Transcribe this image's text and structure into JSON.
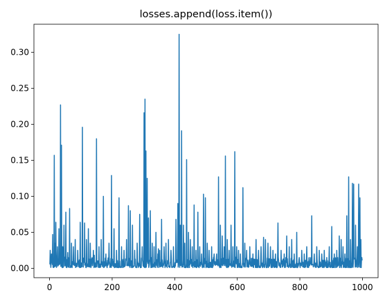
{
  "chart_data": {
    "type": "line",
    "title": "losses.append(loss.item())",
    "xlabel": "",
    "ylabel": "",
    "xlim": [
      -50,
      1050
    ],
    "ylim": [
      -0.013,
      0.339
    ],
    "x_ticks": [
      0,
      200,
      400,
      600,
      800,
      1000
    ],
    "x_tick_labels": [
      "0",
      "200",
      "400",
      "600",
      "800",
      "1000"
    ],
    "y_ticks": [
      0.0,
      0.05,
      0.1,
      0.15,
      0.2,
      0.25,
      0.3
    ],
    "y_tick_labels": [
      "0.00",
      "0.05",
      "0.10",
      "0.15",
      "0.20",
      "0.25",
      "0.30"
    ],
    "grid": false,
    "series": [
      {
        "color": "#1f77b4",
        "x_start": 0,
        "x_end": 999,
        "baseline_range": [
          0.001,
          0.015
        ],
        "peaks": [
          [
            2,
            0.025
          ],
          [
            6,
            0.02
          ],
          [
            10,
            0.047
          ],
          [
            15,
            0.157
          ],
          [
            18,
            0.035
          ],
          [
            20,
            0.064
          ],
          [
            25,
            0.03
          ],
          [
            30,
            0.055
          ],
          [
            35,
            0.227
          ],
          [
            38,
            0.171
          ],
          [
            42,
            0.03
          ],
          [
            46,
            0.06
          ],
          [
            52,
            0.078
          ],
          [
            58,
            0.022
          ],
          [
            64,
            0.083
          ],
          [
            70,
            0.035
          ],
          [
            76,
            0.03
          ],
          [
            82,
            0.04
          ],
          [
            90,
            0.025
          ],
          [
            98,
            0.064
          ],
          [
            105,
            0.196
          ],
          [
            112,
            0.063
          ],
          [
            118,
            0.04
          ],
          [
            124,
            0.055
          ],
          [
            130,
            0.035
          ],
          [
            140,
            0.025
          ],
          [
            150,
            0.18
          ],
          [
            158,
            0.03
          ],
          [
            165,
            0.04
          ],
          [
            172,
            0.1
          ],
          [
            180,
            0.02
          ],
          [
            190,
            0.035
          ],
          [
            198,
            0.129
          ],
          [
            206,
            0.055
          ],
          [
            214,
            0.025
          ],
          [
            222,
            0.098
          ],
          [
            230,
            0.03
          ],
          [
            238,
            0.025
          ],
          [
            246,
            0.04
          ],
          [
            252,
            0.087
          ],
          [
            258,
            0.08
          ],
          [
            265,
            0.06
          ],
          [
            272,
            0.025
          ],
          [
            280,
            0.035
          ],
          [
            288,
            0.075
          ],
          [
            296,
            0.03
          ],
          [
            302,
            0.216
          ],
          [
            305,
            0.235
          ],
          [
            308,
            0.163
          ],
          [
            312,
            0.125
          ],
          [
            316,
            0.07
          ],
          [
            322,
            0.08
          ],
          [
            328,
            0.035
          ],
          [
            334,
            0.03
          ],
          [
            340,
            0.05
          ],
          [
            346,
            0.02
          ],
          [
            352,
            0.025
          ],
          [
            358,
            0.068
          ],
          [
            366,
            0.03
          ],
          [
            372,
            0.035
          ],
          [
            380,
            0.04
          ],
          [
            388,
            0.025
          ],
          [
            396,
            0.03
          ],
          [
            404,
            0.068
          ],
          [
            410,
            0.09
          ],
          [
            414,
            0.325
          ],
          [
            418,
            0.06
          ],
          [
            422,
            0.191
          ],
          [
            428,
            0.06
          ],
          [
            432,
            0.035
          ],
          [
            438,
            0.151
          ],
          [
            444,
            0.05
          ],
          [
            450,
            0.04
          ],
          [
            456,
            0.03
          ],
          [
            462,
            0.088
          ],
          [
            468,
            0.025
          ],
          [
            474,
            0.078
          ],
          [
            480,
            0.03
          ],
          [
            486,
            0.02
          ],
          [
            492,
            0.103
          ],
          [
            498,
            0.098
          ],
          [
            504,
            0.035
          ],
          [
            510,
            0.025
          ],
          [
            518,
            0.03
          ],
          [
            526,
            0.02
          ],
          [
            534,
            0.02
          ],
          [
            540,
            0.127
          ],
          [
            546,
            0.06
          ],
          [
            552,
            0.045
          ],
          [
            558,
            0.03
          ],
          [
            562,
            0.156
          ],
          [
            568,
            0.04
          ],
          [
            574,
            0.025
          ],
          [
            580,
            0.06
          ],
          [
            586,
            0.03
          ],
          [
            592,
            0.162
          ],
          [
            598,
            0.03
          ],
          [
            604,
            0.025
          ],
          [
            610,
            0.02
          ],
          [
            618,
            0.112
          ],
          [
            624,
            0.035
          ],
          [
            630,
            0.025
          ],
          [
            640,
            0.03
          ],
          [
            650,
            0.02
          ],
          [
            660,
            0.04
          ],
          [
            668,
            0.025
          ],
          [
            676,
            0.03
          ],
          [
            684,
            0.043
          ],
          [
            690,
            0.04
          ],
          [
            698,
            0.035
          ],
          [
            706,
            0.03
          ],
          [
            714,
            0.025
          ],
          [
            722,
            0.02
          ],
          [
            730,
            0.063
          ],
          [
            740,
            0.025
          ],
          [
            750,
            0.02
          ],
          [
            758,
            0.045
          ],
          [
            766,
            0.03
          ],
          [
            774,
            0.04
          ],
          [
            782,
            0.02
          ],
          [
            790,
            0.05
          ],
          [
            798,
            0.015
          ],
          [
            806,
            0.025
          ],
          [
            814,
            0.02
          ],
          [
            822,
            0.03
          ],
          [
            830,
            0.015
          ],
          [
            838,
            0.073
          ],
          [
            846,
            0.02
          ],
          [
            854,
            0.03
          ],
          [
            862,
            0.025
          ],
          [
            870,
            0.02
          ],
          [
            878,
            0.025
          ],
          [
            886,
            0.015
          ],
          [
            894,
            0.03
          ],
          [
            902,
            0.058
          ],
          [
            910,
            0.02
          ],
          [
            918,
            0.025
          ],
          [
            926,
            0.045
          ],
          [
            932,
            0.04
          ],
          [
            938,
            0.03
          ],
          [
            944,
            0.02
          ],
          [
            950,
            0.073
          ],
          [
            956,
            0.127
          ],
          [
            962,
            0.04
          ],
          [
            968,
            0.118
          ],
          [
            972,
            0.117
          ],
          [
            978,
            0.06
          ],
          [
            984,
            0.03
          ],
          [
            988,
            0.117
          ],
          [
            992,
            0.098
          ],
          [
            995,
            0.04
          ],
          [
            998,
            0.015
          ]
        ]
      }
    ]
  }
}
